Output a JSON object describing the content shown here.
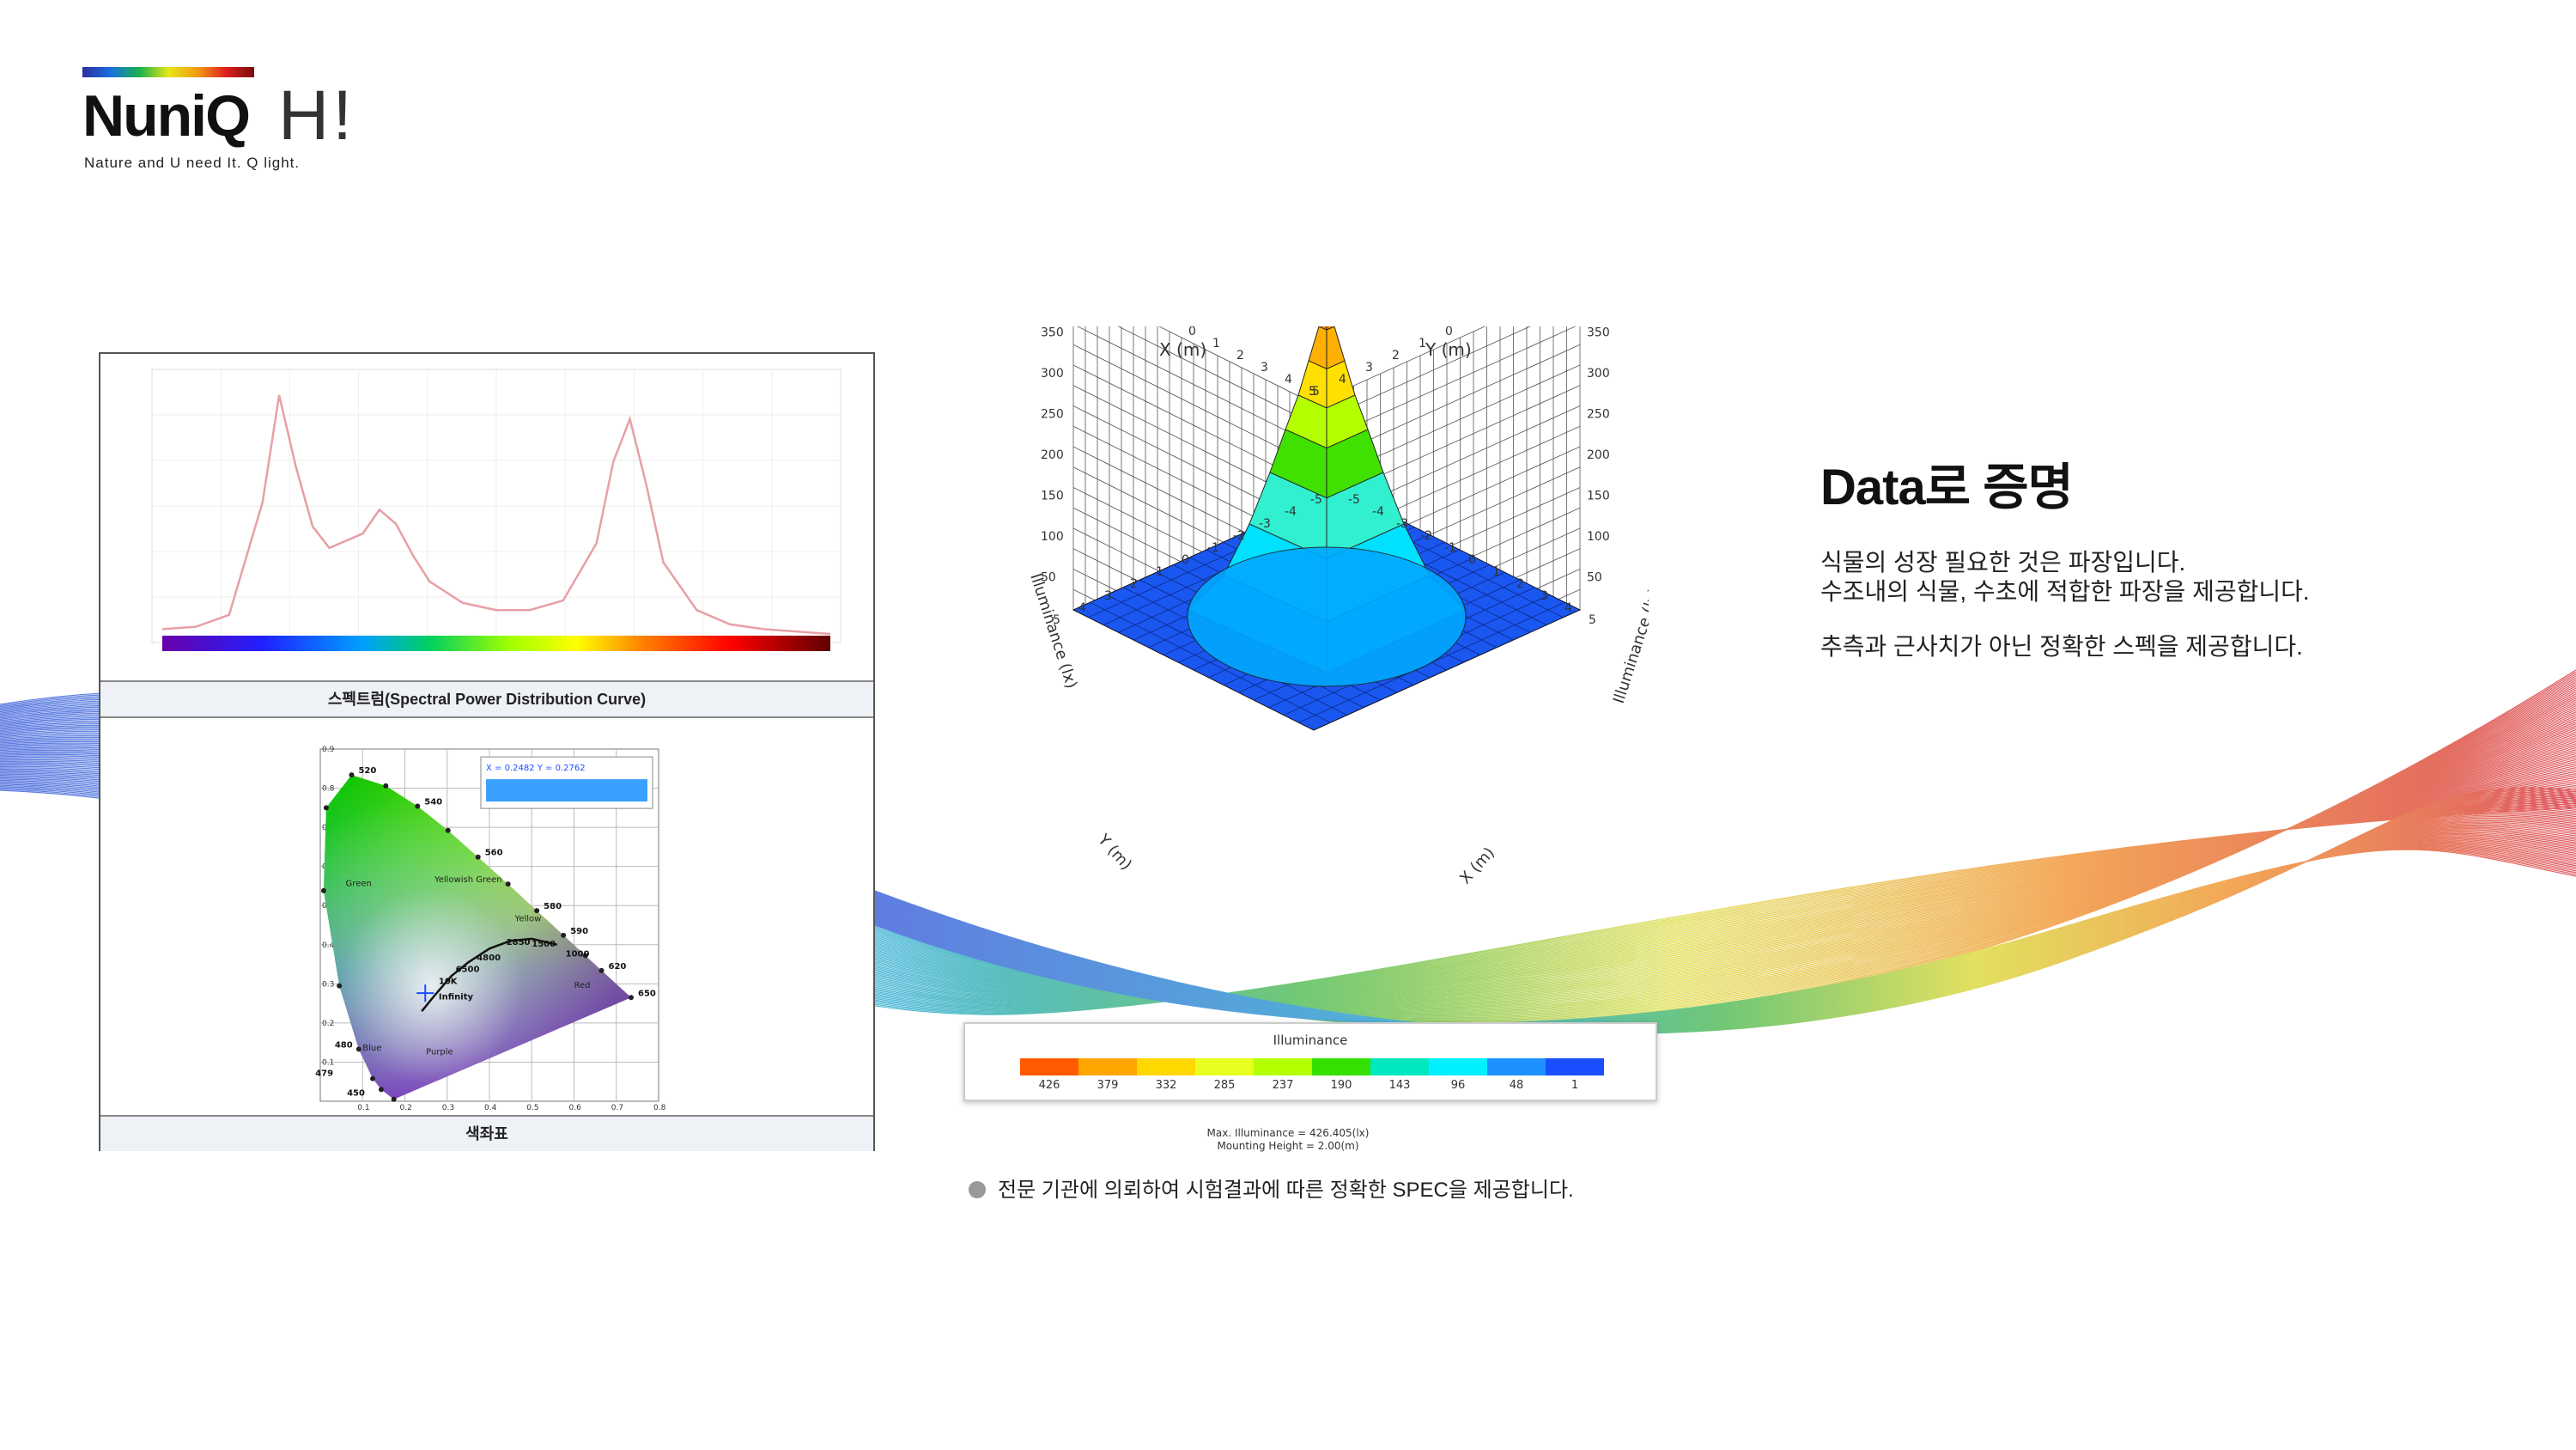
{
  "logo": {
    "brand": "NuniQ",
    "hi": "H!",
    "tagline": "Nature and U need It. Q light."
  },
  "headline": "Data로 증명",
  "body": {
    "line1": "식물의 성장 필요한 것은 파장입니다.",
    "line2": "수조내의 식물, 수초에 적합한 파장을 제공합니다.",
    "line3": "추측과 근사치가 아닌 정확한 스펙을 제공합니다."
  },
  "note": "전문 기관에 의뢰하여 시험결과에 따른 정확한 SPEC을 제공합니다.",
  "spd_caption": "스펙트럼(Spectral  Power  Distribution  Curve)",
  "cie_caption": "색좌표",
  "legend": {
    "title": "Illuminance",
    "labels": [
      "426",
      "379",
      "332",
      "285",
      "237",
      "190",
      "143",
      "96",
      "48",
      "1"
    ],
    "colors": [
      "#ff5a00",
      "#ffa500",
      "#ffd800",
      "#e8ff20",
      "#b4ff00",
      "#34e000",
      "#00e8c0",
      "#00f0ff",
      "#1e90ff",
      "#1a4fff"
    ]
  },
  "max_info": {
    "line1": "Max. Illuminance = 426.405(lx)",
    "line2": "Mounting Height = 2.00(m)"
  },
  "chart_data": [
    {
      "type": "line",
      "x": [
        380,
        400,
        420,
        440,
        450,
        460,
        470,
        480,
        500,
        510,
        520,
        530,
        540,
        560,
        580,
        600,
        620,
        640,
        650,
        660,
        670,
        680,
        700,
        720,
        740,
        760,
        780
      ],
      "series": [
        {
          "values": [
            0.02,
            0.03,
            0.08,
            0.55,
            1.0,
            0.7,
            0.45,
            0.36,
            0.42,
            0.52,
            0.46,
            0.33,
            0.22,
            0.13,
            0.1,
            0.1,
            0.14,
            0.38,
            0.72,
            0.9,
            0.62,
            0.3,
            0.1,
            0.04,
            0.02,
            0.01,
            0.0
          ]
        }
      ],
      "color_bar": true
    },
    {
      "type": "scatter",
      "title": "",
      "xlim": [
        0,
        0.8
      ],
      "ylim": [
        0,
        0.9
      ],
      "xticks": [
        "0.1",
        "0.2",
        "0.3",
        "0.4",
        "0.5",
        "0.6",
        "0.7",
        "0.8"
      ],
      "yticks": [
        "0.1",
        "0.2",
        "0.3",
        "0.4",
        "0.5",
        "0.6",
        "0.7",
        "0.8",
        "0.9"
      ],
      "readout": "X = 0.2482  Y = 0.2762",
      "point": {
        "x": 0.2482,
        "y": 0.2762
      },
      "wavelength_labels": [
        "520",
        "540",
        "560",
        "580",
        "590",
        "620",
        "650",
        "480",
        "479",
        "450"
      ],
      "region_labels": [
        "Green",
        "Yellowish Green",
        "Yellow",
        "Red",
        "Blue",
        "Purple"
      ],
      "cct_labels": [
        "4800",
        "2850",
        "1500",
        "1000",
        "6500",
        "10K",
        "Infinity"
      ]
    },
    {
      "type": "heatmap",
      "title": "Illuminance",
      "x_label": "X (m)",
      "y_label": "Y (m)",
      "z_label": "Illuminance (lx)",
      "axis_ticks": [
        "-5",
        "-4",
        "-3",
        "-2",
        "-1",
        "0",
        "1",
        "2",
        "3",
        "4",
        "5"
      ],
      "z_ticks": [
        "50",
        "100",
        "150",
        "200",
        "250",
        "300",
        "350",
        "400"
      ],
      "peak": 426.405,
      "mounting_height_m": 2.0
    }
  ]
}
